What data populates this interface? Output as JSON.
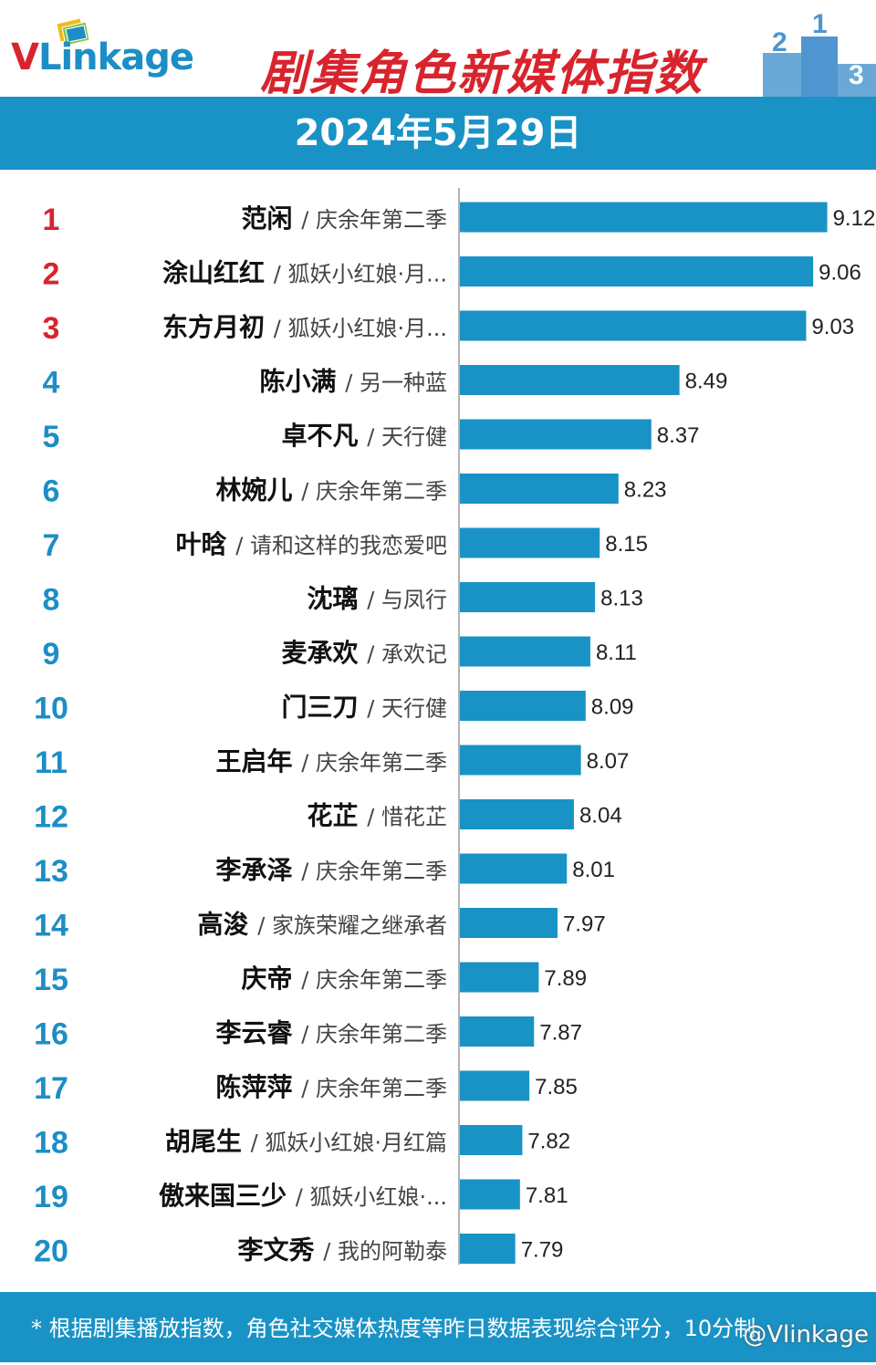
{
  "header": {
    "logo_v": "V",
    "logo_rest": "Linkage",
    "title": "剧集角色新媒体指数",
    "date": "2024年5月29日"
  },
  "colors": {
    "accent_blue": "#1993c6",
    "rank_red": "#d8242d",
    "bar": "#1993c6"
  },
  "chart_data": {
    "type": "bar",
    "orientation": "horizontal",
    "title": "剧集角色新媒体指数",
    "subtitle": "2024年5月29日",
    "xlim": [
      7.55,
      9.25
    ],
    "grid": false,
    "items": [
      {
        "rank": "1",
        "name": "范闲",
        "show": "/ 庆余年第二季",
        "value": 9.12
      },
      {
        "rank": "2",
        "name": "涂山红红",
        "show": "/ 狐妖小红娘·月...",
        "value": 9.06
      },
      {
        "rank": "3",
        "name": "东方月初",
        "show": "/ 狐妖小红娘·月...",
        "value": 9.03
      },
      {
        "rank": "4",
        "name": "陈小满",
        "show": "/ 另一种蓝",
        "value": 8.49
      },
      {
        "rank": "5",
        "name": "卓不凡",
        "show": "/ 天行健",
        "value": 8.37
      },
      {
        "rank": "6",
        "name": "林婉儿",
        "show": "/ 庆余年第二季",
        "value": 8.23
      },
      {
        "rank": "7",
        "name": "叶晗",
        "show": "/ 请和这样的我恋爱吧",
        "value": 8.15
      },
      {
        "rank": "8",
        "name": "沈璃",
        "show": "/ 与凤行",
        "value": 8.13
      },
      {
        "rank": "9",
        "name": "麦承欢",
        "show": "/ 承欢记",
        "value": 8.11
      },
      {
        "rank": "10",
        "name": "门三刀",
        "show": "/ 天行健",
        "value": 8.09
      },
      {
        "rank": "11",
        "name": "王启年",
        "show": "/ 庆余年第二季",
        "value": 8.07
      },
      {
        "rank": "12",
        "name": "花芷",
        "show": "/ 惜花芷",
        "value": 8.04
      },
      {
        "rank": "13",
        "name": "李承泽",
        "show": "/ 庆余年第二季",
        "value": 8.01
      },
      {
        "rank": "14",
        "name": "高浚",
        "show": "/ 家族荣耀之继承者",
        "value": 7.97
      },
      {
        "rank": "15",
        "name": "庆帝",
        "show": "/ 庆余年第二季",
        "value": 7.89
      },
      {
        "rank": "16",
        "name": "李云睿",
        "show": "/ 庆余年第二季",
        "value": 7.87
      },
      {
        "rank": "17",
        "name": "陈萍萍",
        "show": "/ 庆余年第二季",
        "value": 7.85
      },
      {
        "rank": "18",
        "name": "胡尾生",
        "show": "/ 狐妖小红娘·月红篇",
        "value": 7.82
      },
      {
        "rank": "19",
        "name": "傲来国三少",
        "show": "/ 狐妖小红娘·...",
        "value": 7.81
      },
      {
        "rank": "20",
        "name": "李文秀",
        "show": "/ 我的阿勒泰",
        "value": 7.79
      }
    ]
  },
  "footer": {
    "note": "* 根据剧集播放指数，角色社交媒体热度等昨日数据表现综合评分，10分制",
    "watermark": "@Vlinkage"
  }
}
